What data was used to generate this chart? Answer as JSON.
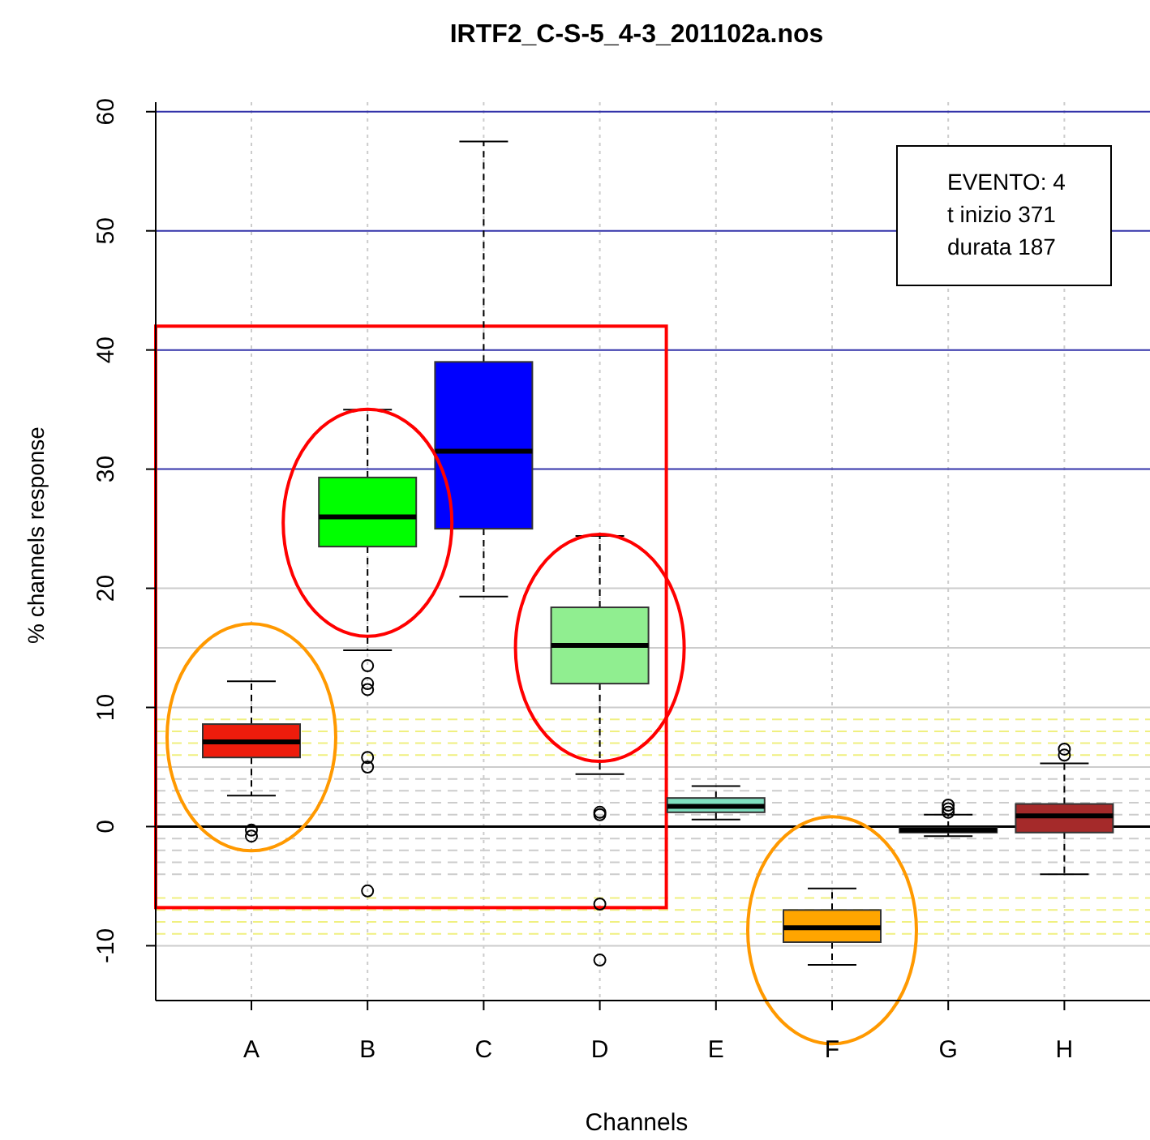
{
  "chart_data": {
    "type": "box",
    "title": "IRTF2_C-S-5_4-3_201102a.nos",
    "xlabel": "Channels",
    "ylabel": "% channels response",
    "categories": [
      "A",
      "B",
      "C",
      "D",
      "E",
      "F",
      "G",
      "H"
    ],
    "colors": [
      "#ee1c0c",
      "#00ff00",
      "#0000ff",
      "#90ee90",
      "#7fe0c0",
      "#ffa500",
      "#000000",
      "#a52a2a"
    ],
    "boxes": [
      {
        "low": 2.6,
        "q1": 5.8,
        "median": 7.1,
        "q3": 8.6,
        "high": 12.2,
        "outliers": [
          -0.3,
          -0.8
        ]
      },
      {
        "low": 14.8,
        "q1": 23.5,
        "median": 26,
        "q3": 29.3,
        "high": 35,
        "outliers": [
          13.5,
          12,
          11.5,
          5.8,
          5,
          -5.4
        ]
      },
      {
        "low": 19.3,
        "q1": 25,
        "median": 31.5,
        "q3": 39,
        "high": 57.5
      },
      {
        "low": 4.4,
        "q1": 12,
        "median": 15.2,
        "q3": 18.4,
        "high": 24.4,
        "outliers": [
          1.2,
          1,
          -6.5,
          -11.2
        ]
      },
      {
        "low": 0.6,
        "q1": 1.2,
        "median": 1.7,
        "q3": 2.4,
        "high": 3.4
      },
      {
        "low": -11.6,
        "q1": -9.7,
        "median": -8.5,
        "q3": -7,
        "high": -5.2
      },
      {
        "low": -0.8,
        "q1": -0.5,
        "median": -0.3,
        "q3": -0.1,
        "high": 1,
        "outliers": [
          1.2,
          1.5,
          1.8
        ]
      },
      {
        "low": -4,
        "q1": -0.5,
        "median": 0.9,
        "q3": 1.9,
        "high": 5.3,
        "outliers": [
          6,
          6.5
        ]
      }
    ],
    "ylim": [
      -14.6,
      60.8
    ],
    "yticks": [
      -10,
      0,
      10,
      20,
      30,
      40,
      50,
      60
    ],
    "grid": "x",
    "ref_lines": [
      {
        "axis": "y",
        "value": 60,
        "color": "#3333aa",
        "line_style": "solid"
      },
      {
        "axis": "y",
        "value": 50,
        "color": "#3333aa",
        "line_style": "solid"
      },
      {
        "axis": "y",
        "value": 40,
        "color": "#3333aa",
        "line_style": "solid"
      },
      {
        "axis": "y",
        "value": 30,
        "color": "#3333aa",
        "line_style": "solid"
      },
      {
        "axis": "y",
        "value": 20,
        "color": "#cccccc",
        "line_style": "solid"
      },
      {
        "axis": "y",
        "value": 15,
        "color": "#cccccc",
        "line_style": "solid"
      },
      {
        "axis": "y",
        "value": 10,
        "color": "#cccccc",
        "line_style": "solid"
      },
      {
        "axis": "y",
        "value": 5,
        "color": "#cccccc",
        "line_style": "solid"
      },
      {
        "axis": "y",
        "value": -10,
        "color": "#cccccc",
        "line_style": "solid"
      },
      {
        "axis": "y",
        "value": 9,
        "color": "#f0f080",
        "line_style": "dashed"
      },
      {
        "axis": "y",
        "value": 8,
        "color": "#f0f080",
        "line_style": "dashed"
      },
      {
        "axis": "y",
        "value": 7,
        "color": "#f0f080",
        "line_style": "dashed"
      },
      {
        "axis": "y",
        "value": 6,
        "color": "#f0f080",
        "line_style": "dashed"
      },
      {
        "axis": "y",
        "value": 4,
        "color": "#cccccc",
        "line_style": "dashed"
      },
      {
        "axis": "y",
        "value": 3,
        "color": "#cccccc",
        "line_style": "dashed"
      },
      {
        "axis": "y",
        "value": 2,
        "color": "#cccccc",
        "line_style": "dashed"
      },
      {
        "axis": "y",
        "value": 1,
        "color": "#cccccc",
        "line_style": "dashed"
      },
      {
        "axis": "y",
        "value": -1,
        "color": "#cccccc",
        "line_style": "dashed"
      },
      {
        "axis": "y",
        "value": -2,
        "color": "#cccccc",
        "line_style": "dashed"
      },
      {
        "axis": "y",
        "value": -3,
        "color": "#cccccc",
        "line_style": "dashed"
      },
      {
        "axis": "y",
        "value": -4,
        "color": "#cccccc",
        "line_style": "dashed"
      },
      {
        "axis": "y",
        "value": -6,
        "color": "#f0f080",
        "line_style": "dashed"
      },
      {
        "axis": "y",
        "value": -7,
        "color": "#f0f080",
        "line_style": "dashed"
      },
      {
        "axis": "y",
        "value": -8,
        "color": "#f0f080",
        "line_style": "dashed"
      },
      {
        "axis": "y",
        "value": -9,
        "color": "#f0f080",
        "line_style": "dashed"
      },
      {
        "axis": "y",
        "value": 0,
        "color": "#000000",
        "line_style": "solid"
      }
    ],
    "annotations": [
      "EVENTO: 4",
      "t inizio 371",
      "durata 187"
    ]
  }
}
